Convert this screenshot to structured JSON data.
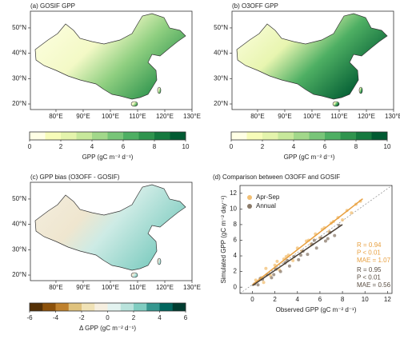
{
  "chart_data": [
    {
      "type": "map",
      "title": "(a) GOSIF GPP",
      "xlim": [
        70.6,
        130
      ],
      "ylim": [
        17.8,
        56.6
      ],
      "xticks": [
        {
          "value": 80,
          "label": "80°E"
        },
        {
          "value": 90,
          "label": "90°E"
        },
        {
          "value": 100,
          "label": "100°E"
        },
        {
          "value": 110,
          "label": "110°E"
        },
        {
          "value": 120,
          "label": "120°E"
        },
        {
          "value": 130,
          "label": "130°E"
        }
      ],
      "yticks": [
        {
          "value": 20,
          "label": "20°N"
        },
        {
          "value": 30,
          "label": "30°N"
        },
        {
          "value": 40,
          "label": "40°N"
        },
        {
          "value": 50,
          "label": "50°N"
        }
      ],
      "colorbar": {
        "label": "GPP (gC m⁻² d⁻¹)",
        "lim": [
          0,
          10
        ],
        "ticks": [
          0,
          2,
          4,
          6,
          8,
          10
        ],
        "colors": [
          "#ffffe5",
          "#f7fcb9",
          "#e4f4ac",
          "#c7e89b",
          "#a2d88a",
          "#78c578",
          "#4eaf63",
          "#2f944e",
          "#15793f",
          "#005a32"
        ]
      }
    },
    {
      "type": "map",
      "title": "(b) O3OFF GPP",
      "xlim": [
        70.6,
        130
      ],
      "ylim": [
        17.8,
        56.6
      ],
      "xticks": [
        {
          "value": 80,
          "label": "80°E"
        },
        {
          "value": 90,
          "label": "90°E"
        },
        {
          "value": 100,
          "label": "100°E"
        },
        {
          "value": 110,
          "label": "110°E"
        },
        {
          "value": 120,
          "label": "120°E"
        },
        {
          "value": 130,
          "label": "130°E"
        }
      ],
      "yticks": [
        {
          "value": 20,
          "label": "20°N"
        },
        {
          "value": 30,
          "label": "30°N"
        },
        {
          "value": 40,
          "label": "40°N"
        },
        {
          "value": 50,
          "label": "50°N"
        }
      ],
      "colorbar": {
        "label": "GPP (gC m⁻² d⁻¹)",
        "lim": [
          0,
          10
        ],
        "ticks": [
          0,
          2,
          4,
          6,
          8,
          10
        ],
        "colors": [
          "#ffffe5",
          "#f7fcb9",
          "#e4f4ac",
          "#c7e89b",
          "#a2d88a",
          "#78c578",
          "#4eaf63",
          "#2f944e",
          "#15793f",
          "#005a32"
        ]
      }
    },
    {
      "type": "map",
      "title": "(c) GPP bias (O3OFF - GOSIF)",
      "xlim": [
        70.6,
        130
      ],
      "ylim": [
        17.8,
        56.6
      ],
      "xticks": [
        {
          "value": 80,
          "label": "80°E"
        },
        {
          "value": 90,
          "label": "90°E"
        },
        {
          "value": 100,
          "label": "100°E"
        },
        {
          "value": 110,
          "label": "110°E"
        },
        {
          "value": 120,
          "label": "120°E"
        },
        {
          "value": 130,
          "label": "130°E"
        }
      ],
      "yticks": [
        {
          "value": 20,
          "label": "20°N"
        },
        {
          "value": 30,
          "label": "30°N"
        },
        {
          "value": 40,
          "label": "40°N"
        },
        {
          "value": 50,
          "label": "50°N"
        }
      ],
      "colorbar": {
        "label": "Δ GPP (gC m⁻² d⁻¹)",
        "lim": [
          -6,
          6
        ],
        "ticks": [
          -6,
          -4,
          -2,
          0,
          2,
          4,
          6
        ],
        "colors": [
          "#543005",
          "#8c510a",
          "#bf812d",
          "#dfc27d",
          "#f0e2b6",
          "#f6efe0",
          "#e3f3f0",
          "#b9e3dc",
          "#80cdc1",
          "#35978f",
          "#01665e",
          "#003c30"
        ]
      }
    },
    {
      "type": "scatter",
      "title": "(d) Comparison between O3OFF and GOSIF",
      "x_label": "Observed GPP (gC m⁻² d⁻¹)",
      "y_label": "Simulated GPP (gC m⁻² day⁻¹)",
      "xlim": [
        -1.1,
        12.4
      ],
      "ylim": [
        -0.8,
        13
      ],
      "xticks": [
        0,
        2,
        4,
        6,
        8,
        10,
        12
      ],
      "yticks": [
        0,
        2,
        4,
        6,
        8,
        10,
        12
      ],
      "series": [
        {
          "name": "Apr-Sep",
          "color": "#f2bf73",
          "x": [
            0.3,
            0.8,
            1.2,
            1.6,
            2.0,
            2.4,
            2.8,
            3.2,
            3.6,
            4.0,
            4.4,
            4.8,
            5.2,
            5.6,
            6.0,
            6.4,
            6.8,
            7.2,
            7.6,
            8.0,
            8.4,
            8.8,
            9.2,
            9.6,
            1.0,
            3.0,
            5.0,
            7.0,
            2.2,
            6.2
          ],
          "values": [
            0.9,
            1.2,
            2.4,
            1.5,
            2.8,
            2.2,
            3.6,
            4.1,
            3.4,
            5.0,
            4.6,
            5.9,
            5.5,
            6.8,
            6.3,
            7.6,
            7.1,
            8.4,
            8.9,
            8.6,
            9.8,
            9.5,
            10.6,
            11.0,
            0.6,
            3.9,
            6.0,
            8.2,
            3.3,
            7.4
          ],
          "fit": {
            "x": [
              0,
              9.8
            ],
            "y": [
              0.3,
              11.3
            ]
          },
          "stats": [
            "R = 0.94",
            "P < 0.01",
            "MAE = 1.07"
          ]
        },
        {
          "name": "Annual",
          "color": "#8a7a6a",
          "x": [
            0.2,
            0.5,
            0.9,
            1.3,
            1.7,
            2.1,
            2.5,
            2.9,
            3.3,
            3.7,
            4.1,
            4.5,
            4.9,
            5.3,
            5.7,
            6.1,
            6.5,
            6.9,
            7.3,
            7.7,
            0.7,
            1.9,
            3.1,
            4.3,
            5.5,
            6.7
          ],
          "values": [
            0.4,
            0.3,
            1.0,
            1.6,
            1.2,
            2.3,
            2.0,
            3.1,
            2.7,
            3.9,
            3.5,
            4.6,
            4.2,
            5.5,
            5.0,
            6.3,
            5.9,
            7.0,
            6.6,
            7.9,
            1.1,
            1.6,
            3.4,
            4.1,
            6.0,
            6.2
          ],
          "fit": {
            "x": [
              0,
              8
            ],
            "y": [
              0.2,
              8.0
            ]
          },
          "stats": [
            "R = 0.95",
            "P < 0.01",
            "MAE = 0.56"
          ]
        }
      ]
    }
  ]
}
